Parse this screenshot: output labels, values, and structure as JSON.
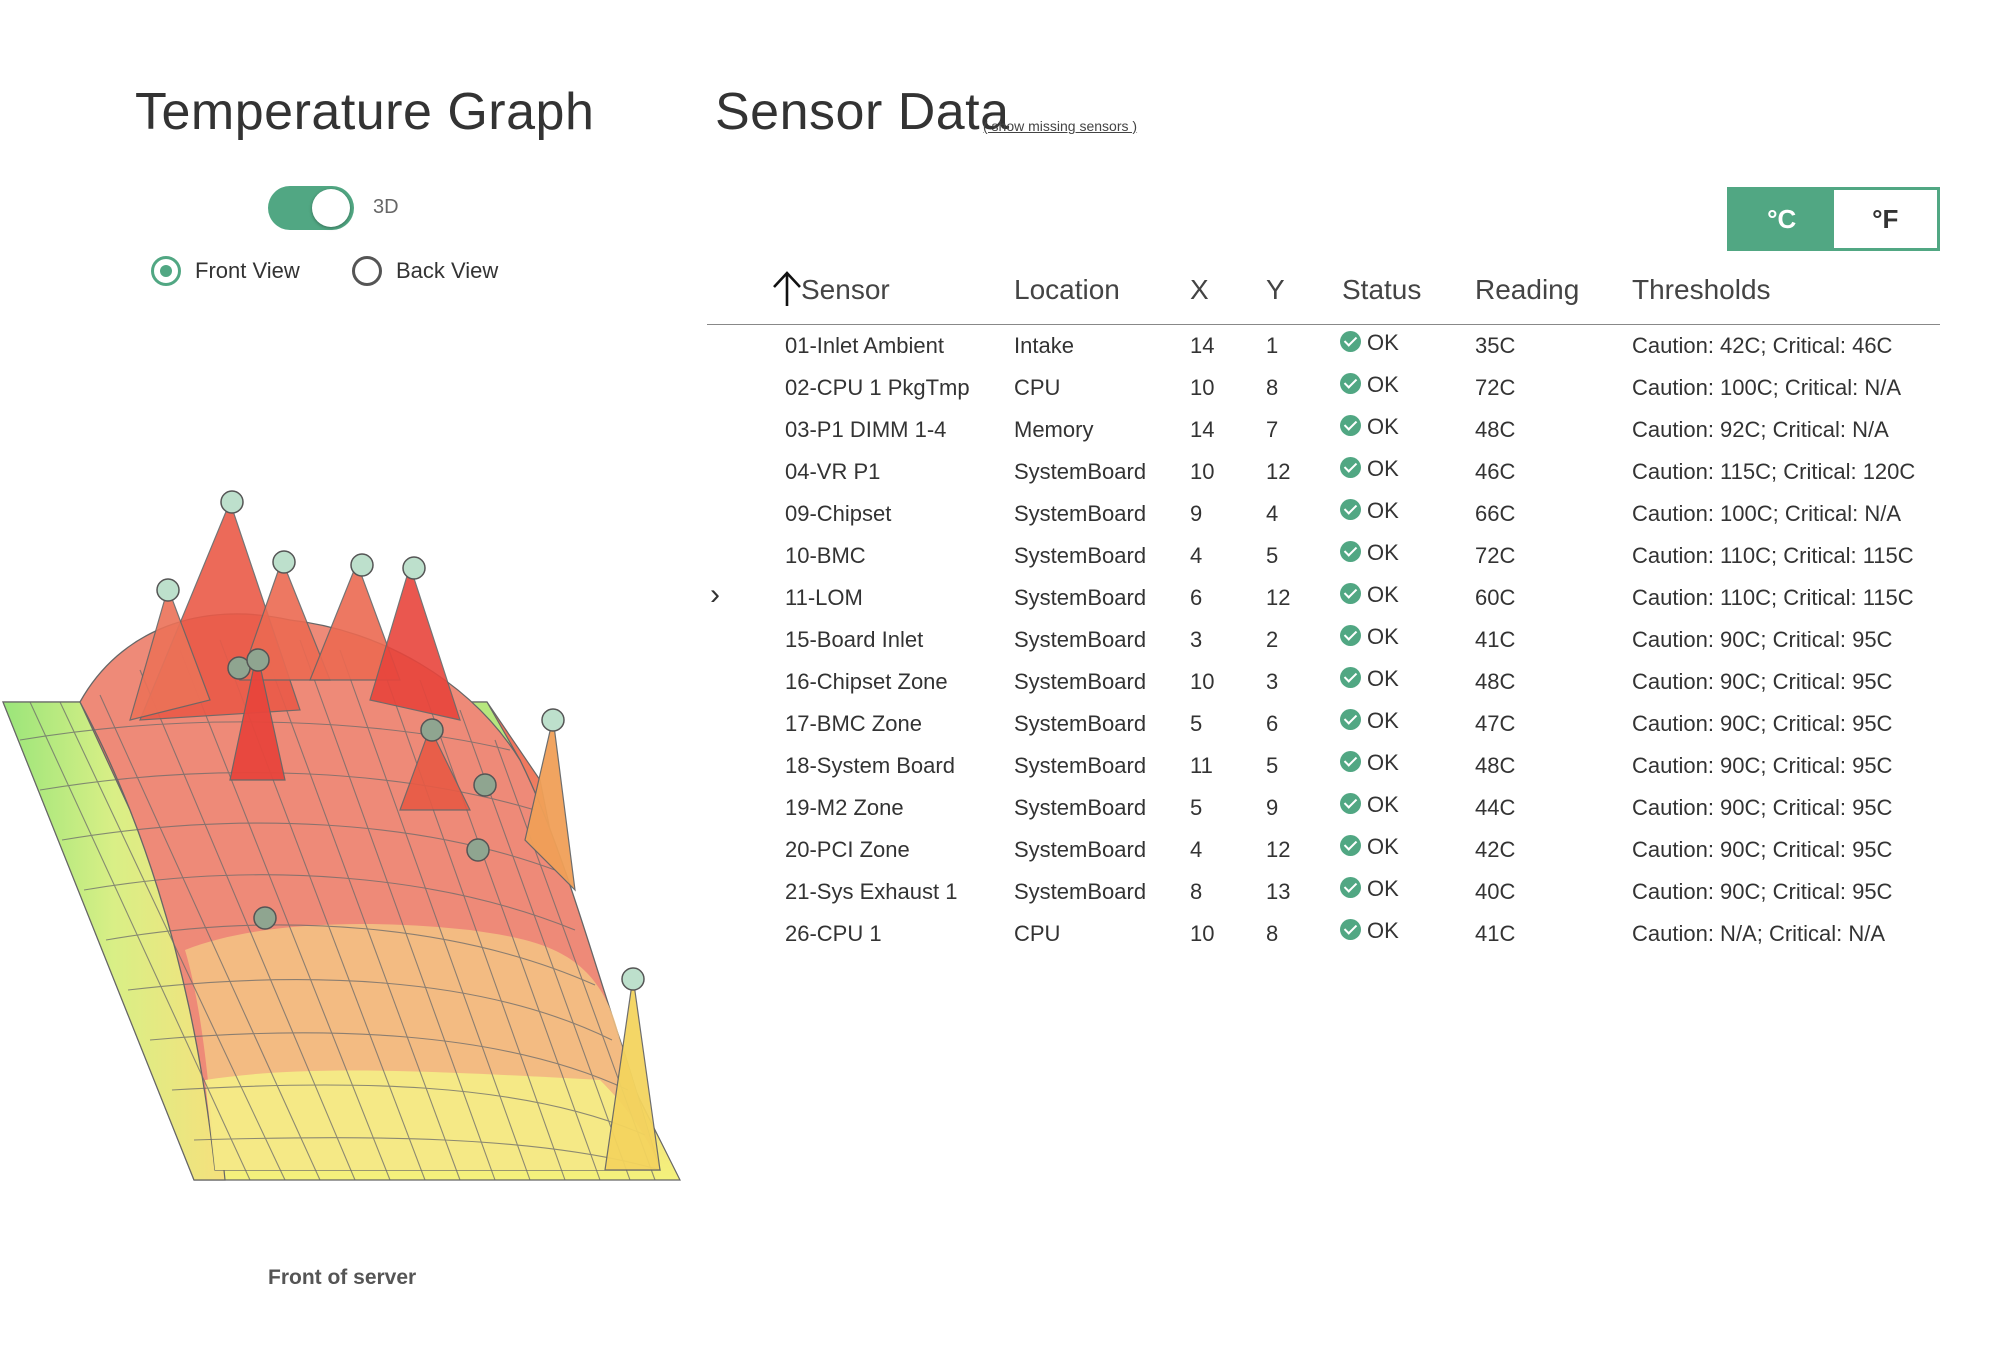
{
  "graph": {
    "title": "Temperature Graph",
    "toggle_label": "3D",
    "toggle_on": true,
    "views": [
      {
        "label": "Front View",
        "selected": true
      },
      {
        "label": "Back View",
        "selected": false
      }
    ],
    "caption": "Front of server"
  },
  "sensors": {
    "title": "Sensor Data",
    "missing_link": "( show missing sensors )",
    "units": {
      "celsius": "°C",
      "fahrenheit": "°F",
      "selected": "celsius"
    },
    "chevron": "›",
    "columns": [
      "Sensor",
      "Location",
      "X",
      "Y",
      "Status",
      "Reading",
      "Thresholds"
    ],
    "sort_column": "Sensor",
    "rows": [
      {
        "sensor": "01-Inlet Ambient",
        "location": "Intake",
        "x": "14",
        "y": "1",
        "status": "OK",
        "reading": "35C",
        "thresholds": "Caution: 42C; Critical: 46C"
      },
      {
        "sensor": "02-CPU 1 PkgTmp",
        "location": "CPU",
        "x": "10",
        "y": "8",
        "status": "OK",
        "reading": "72C",
        "thresholds": "Caution: 100C; Critical: N/A"
      },
      {
        "sensor": "03-P1 DIMM 1-4",
        "location": "Memory",
        "x": "14",
        "y": "7",
        "status": "OK",
        "reading": "48C",
        "thresholds": "Caution: 92C; Critical: N/A"
      },
      {
        "sensor": "04-VR P1",
        "location": "SystemBoard",
        "x": "10",
        "y": "12",
        "status": "OK",
        "reading": "46C",
        "thresholds": "Caution: 115C; Critical: 120C"
      },
      {
        "sensor": "09-Chipset",
        "location": "SystemBoard",
        "x": "9",
        "y": "4",
        "status": "OK",
        "reading": "66C",
        "thresholds": "Caution: 100C; Critical: N/A"
      },
      {
        "sensor": "10-BMC",
        "location": "SystemBoard",
        "x": "4",
        "y": "5",
        "status": "OK",
        "reading": "72C",
        "thresholds": "Caution: 110C; Critical: 115C"
      },
      {
        "sensor": "11-LOM",
        "location": "SystemBoard",
        "x": "6",
        "y": "12",
        "status": "OK",
        "reading": "60C",
        "thresholds": "Caution: 110C; Critical: 115C"
      },
      {
        "sensor": "15-Board Inlet",
        "location": "SystemBoard",
        "x": "3",
        "y": "2",
        "status": "OK",
        "reading": "41C",
        "thresholds": "Caution: 90C; Critical: 95C"
      },
      {
        "sensor": "16-Chipset Zone",
        "location": "SystemBoard",
        "x": "10",
        "y": "3",
        "status": "OK",
        "reading": "48C",
        "thresholds": "Caution: 90C; Critical: 95C"
      },
      {
        "sensor": "17-BMC Zone",
        "location": "SystemBoard",
        "x": "5",
        "y": "6",
        "status": "OK",
        "reading": "47C",
        "thresholds": "Caution: 90C; Critical: 95C"
      },
      {
        "sensor": "18-System Board",
        "location": "SystemBoard",
        "x": "11",
        "y": "5",
        "status": "OK",
        "reading": "48C",
        "thresholds": "Caution: 90C; Critical: 95C"
      },
      {
        "sensor": "19-M2 Zone",
        "location": "SystemBoard",
        "x": "5",
        "y": "9",
        "status": "OK",
        "reading": "44C",
        "thresholds": "Caution: 90C; Critical: 95C"
      },
      {
        "sensor": "20-PCI Zone",
        "location": "SystemBoard",
        "x": "4",
        "y": "12",
        "status": "OK",
        "reading": "42C",
        "thresholds": "Caution: 90C; Critical: 95C"
      },
      {
        "sensor": "21-Sys Exhaust 1",
        "location": "SystemBoard",
        "x": "8",
        "y": "13",
        "status": "OK",
        "reading": "40C",
        "thresholds": "Caution: 90C; Critical: 95C"
      },
      {
        "sensor": "26-CPU 1",
        "location": "CPU",
        "x": "10",
        "y": "8",
        "status": "OK",
        "reading": "41C",
        "thresholds": "Caution: N/A; Critical: N/A"
      }
    ]
  },
  "colors": {
    "accent": "#51a783",
    "heat_hot": "#e8453c",
    "heat_warm": "#f2a35a",
    "heat_cool": "#f6f07a",
    "heat_cold": "#8fe07a"
  }
}
